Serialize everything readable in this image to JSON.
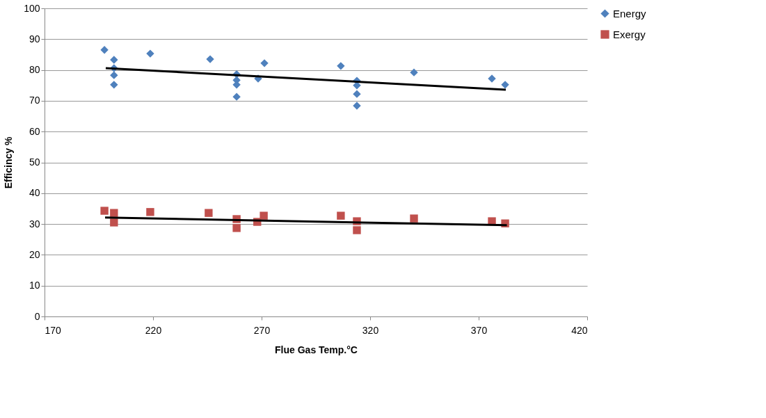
{
  "chart_data": {
    "type": "scatter",
    "xlabel": "Flue Gas  Temp.°C",
    "ylabel": "Efficincy %",
    "xlim": [
      170,
      420
    ],
    "xticks": [
      170,
      220,
      270,
      320,
      370,
      420
    ],
    "ylim": [
      0,
      100
    ],
    "yticks": [
      0,
      10,
      20,
      30,
      40,
      50,
      60,
      70,
      80,
      90,
      100
    ],
    "grid": "y",
    "legend": "right",
    "series": [
      {
        "name": "Energy",
        "color": "#4f81bd",
        "marker": "diamond",
        "x": [
          197.6,
          202,
          202,
          202,
          202,
          218.7,
          246.3,
          258.5,
          258.5,
          258.5,
          258.5,
          268.4,
          271.3,
          306.5,
          313.9,
          313.9,
          313.9,
          313.9,
          340.2,
          376.1,
          382.2
        ],
        "values": [
          86.5,
          83.3,
          80.6,
          78.3,
          75.2,
          85.3,
          83.5,
          78.6,
          76.7,
          75.2,
          71.3,
          77.2,
          82.2,
          81.3,
          76.5,
          75,
          72.2,
          68.4,
          79.2,
          77.2,
          75.2
        ]
      },
      {
        "name": "Exergy",
        "color": "#c0504d",
        "marker": "square",
        "x": [
          197.6,
          202,
          202,
          218.7,
          245.6,
          258.5,
          258.5,
          268,
          271,
          306.5,
          313.9,
          313.9,
          340.2,
          376.1,
          382.2
        ],
        "values": [
          34.3,
          33.6,
          30.5,
          33.9,
          33.6,
          31.6,
          28.7,
          30.7,
          32.7,
          32.7,
          30.9,
          28,
          31.8,
          30.9,
          30.2
        ]
      },
      {
        "type": "line",
        "color": "#000000",
        "x": [
          198.2,
          382.5
        ],
        "values": [
          80.6,
          73.6
        ]
      },
      {
        "type": "line",
        "color": "#000000",
        "x": [
          197.9,
          383
        ],
        "values": [
          32.1,
          29.6
        ]
      }
    ]
  }
}
